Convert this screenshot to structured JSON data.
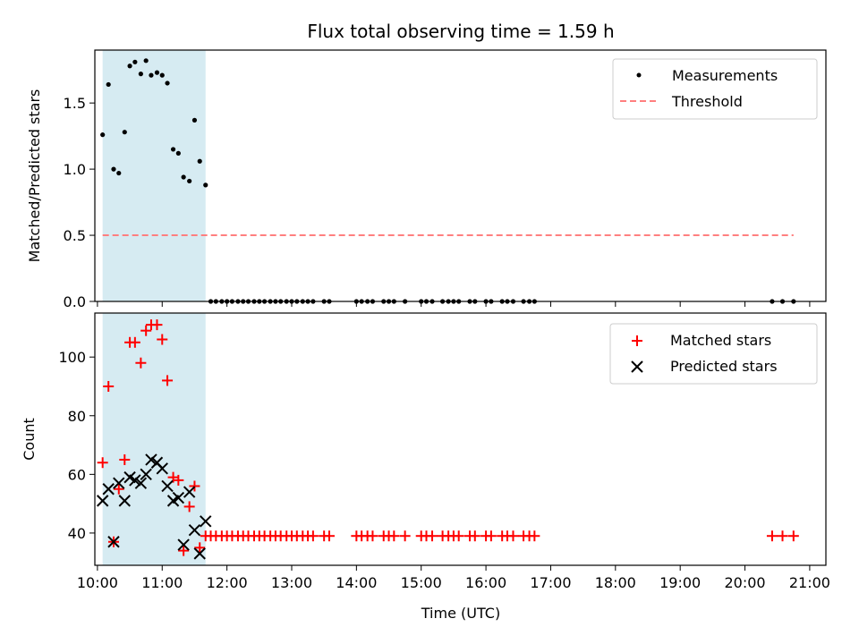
{
  "chart_data": [
    {
      "type": "scatter",
      "title": "Flux total observing time = 1.59 h",
      "ylabel": "Matched/Predicted stars",
      "xlabel": "",
      "xlim": [
        9.96,
        21.25
      ],
      "ylim": [
        0,
        1.9
      ],
      "yticks": [
        0.0,
        0.5,
        1.0,
        1.5
      ],
      "ytick_labels": [
        "0.0",
        "0.5",
        "1.0",
        "1.5"
      ],
      "shaded_span": [
        10.08,
        11.67
      ],
      "legend": {
        "position": "top-right",
        "entries": [
          "Measurements",
          "Threshold"
        ]
      },
      "series": [
        {
          "name": "Measurements",
          "color": "#000000",
          "x": [
            10.08,
            10.17,
            10.25,
            10.33,
            10.42,
            10.5,
            10.58,
            10.67,
            10.75,
            10.83,
            10.92,
            11.0,
            11.08,
            11.17,
            11.25,
            11.33,
            11.42,
            11.5,
            11.58,
            11.67,
            11.75,
            11.83,
            11.92,
            12.0,
            12.08,
            12.17,
            12.25,
            12.33,
            12.42,
            12.5,
            12.58,
            12.67,
            12.75,
            12.83,
            12.92,
            13.0,
            13.08,
            13.17,
            13.25,
            13.33,
            13.5,
            13.58,
            14.0,
            14.08,
            14.17,
            14.25,
            14.42,
            14.5,
            14.58,
            14.75,
            15.0,
            15.08,
            15.17,
            15.33,
            15.42,
            15.5,
            15.58,
            15.75,
            15.83,
            16.0,
            16.08,
            16.25,
            16.33,
            16.42,
            16.58,
            16.67,
            16.75,
            20.42,
            20.58,
            20.75
          ],
          "y": [
            1.26,
            1.64,
            1.0,
            0.97,
            1.28,
            1.78,
            1.81,
            1.72,
            1.82,
            1.71,
            1.73,
            1.71,
            1.65,
            1.15,
            1.12,
            0.94,
            0.91,
            1.37,
            1.06,
            0.88,
            0,
            0,
            0,
            0,
            0,
            0,
            0,
            0,
            0,
            0,
            0,
            0,
            0,
            0,
            0,
            0,
            0,
            0,
            0,
            0,
            0,
            0,
            0,
            0,
            0,
            0,
            0,
            0,
            0,
            0,
            0,
            0,
            0,
            0,
            0,
            0,
            0,
            0,
            0,
            0,
            0,
            0,
            0,
            0,
            0,
            0,
            0,
            0,
            0,
            0
          ]
        },
        {
          "name": "Threshold",
          "color": "#ff7f7f",
          "style": "dashed",
          "x": [
            10.08,
            20.75
          ],
          "y": [
            0.5,
            0.5
          ]
        }
      ]
    },
    {
      "type": "scatter",
      "title": "",
      "ylabel": "Count",
      "xlabel": "Time (UTC)",
      "xlim": [
        9.96,
        21.25
      ],
      "ylim": [
        29,
        115
      ],
      "yticks": [
        40,
        60,
        80,
        100
      ],
      "ytick_labels": [
        "40",
        "60",
        "80",
        "100"
      ],
      "xticks": [
        10,
        11,
        12,
        13,
        14,
        15,
        16,
        17,
        18,
        19,
        20,
        21
      ],
      "xtick_labels": [
        "10:00",
        "11:00",
        "12:00",
        "13:00",
        "14:00",
        "15:00",
        "16:00",
        "17:00",
        "18:00",
        "19:00",
        "20:00",
        "21:00"
      ],
      "shaded_span": [
        10.08,
        11.67
      ],
      "legend": {
        "position": "top-right",
        "entries": [
          "Matched stars",
          "Predicted stars"
        ]
      },
      "series": [
        {
          "name": "Matched stars",
          "color": "#ff0000",
          "marker": "plus",
          "x": [
            10.08,
            10.17,
            10.25,
            10.33,
            10.42,
            10.5,
            10.58,
            10.67,
            10.75,
            10.83,
            10.92,
            11.0,
            11.08,
            11.17,
            11.25,
            11.33,
            11.42,
            11.5,
            11.58,
            11.67,
            11.75,
            11.83,
            11.92,
            12.0,
            12.08,
            12.17,
            12.25,
            12.33,
            12.42,
            12.5,
            12.58,
            12.67,
            12.75,
            12.83,
            12.92,
            13.0,
            13.08,
            13.17,
            13.25,
            13.33,
            13.5,
            13.58,
            14.0,
            14.08,
            14.17,
            14.25,
            14.42,
            14.5,
            14.58,
            14.75,
            15.0,
            15.08,
            15.17,
            15.33,
            15.42,
            15.5,
            15.58,
            15.75,
            15.83,
            16.0,
            16.08,
            16.25,
            16.33,
            16.42,
            16.58,
            16.67,
            16.75,
            20.42,
            20.58,
            20.75
          ],
          "y": [
            64,
            90,
            37,
            55,
            65,
            105,
            105,
            98,
            109,
            111,
            111,
            106,
            92,
            59,
            58,
            34,
            49,
            56,
            35,
            39,
            39,
            39,
            39,
            39,
            39,
            39,
            39,
            39,
            39,
            39,
            39,
            39,
            39,
            39,
            39,
            39,
            39,
            39,
            39,
            39,
            39,
            39,
            39,
            39,
            39,
            39,
            39,
            39,
            39,
            39,
            39,
            39,
            39,
            39,
            39,
            39,
            39,
            39,
            39,
            39,
            39,
            39,
            39,
            39,
            39,
            39,
            39,
            39,
            39,
            39
          ]
        },
        {
          "name": "Predicted stars",
          "color": "#000000",
          "marker": "x",
          "x": [
            10.08,
            10.17,
            10.25,
            10.33,
            10.42,
            10.5,
            10.58,
            10.67,
            10.75,
            10.83,
            10.92,
            11.0,
            11.08,
            11.17,
            11.25,
            11.33,
            11.42,
            11.5,
            11.58,
            11.67
          ],
          "y": [
            51,
            55,
            37,
            57,
            51,
            59,
            58,
            57,
            60,
            65,
            64,
            62,
            56,
            51,
            52,
            36,
            54,
            41,
            33,
            44
          ]
        }
      ]
    }
  ]
}
